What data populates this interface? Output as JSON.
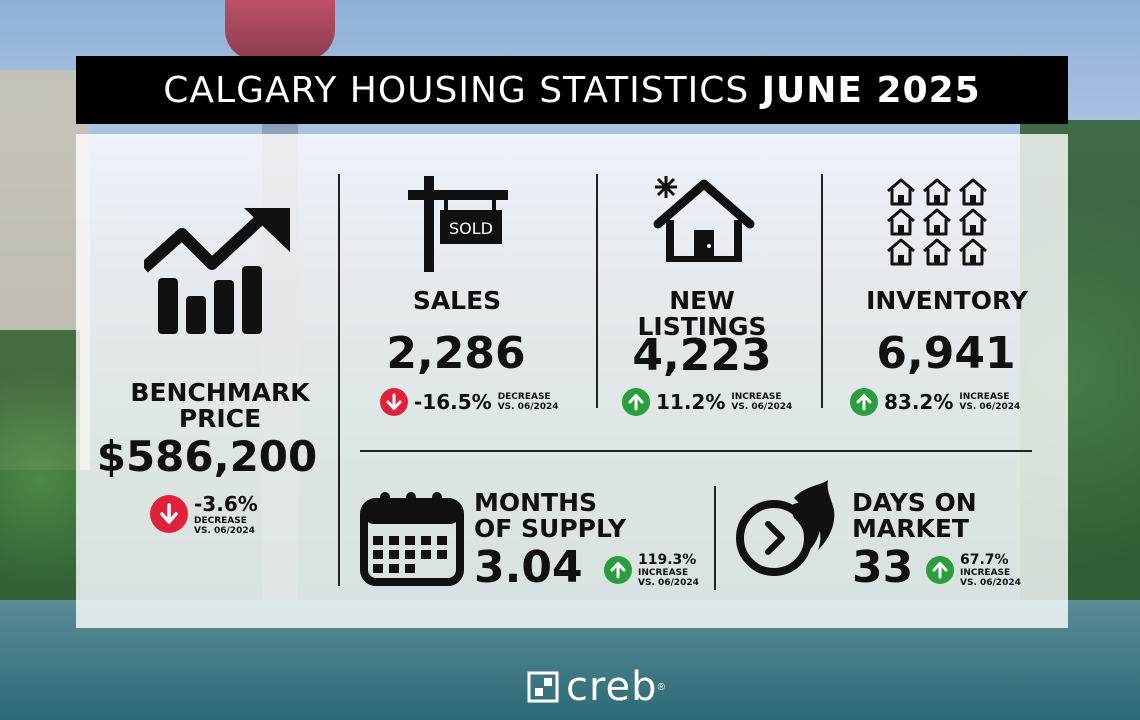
{
  "title": {
    "prefix": "CALGARY HOUSING STATISTICS",
    "period": "JUNE 2025"
  },
  "benchmark": {
    "label_line1": "BENCHMARK",
    "label_line2": "PRICE",
    "value": "$586,200",
    "change": "-3.6%",
    "note1": "DECREASE",
    "note2": "VS. 06/2024",
    "direction": "down",
    "icon": "trending-up-chart-icon"
  },
  "sales": {
    "label": "SALES",
    "value": "2,286",
    "change": "-16.5%",
    "note1": "DECREASE",
    "note2": "VS. 06/2024",
    "direction": "down",
    "sign_text": "SOLD",
    "icon": "sold-sign-icon"
  },
  "new_listings": {
    "label_line1": "NEW",
    "label_line2": "LISTINGS",
    "value": "4,223",
    "change": "11.2%",
    "note1": "INCREASE",
    "note2": "VS. 06/2024",
    "direction": "up",
    "icon": "new-house-icon"
  },
  "inventory": {
    "label": "INVENTORY",
    "value": "6,941",
    "change": "83.2%",
    "note1": "INCREASE",
    "note2": "VS. 06/2024",
    "direction": "up",
    "icon": "houses-grid-icon"
  },
  "months_supply": {
    "label_line1": "MONTHS",
    "label_line2": "OF SUPPLY",
    "value": "3.04",
    "change": "119.3%",
    "note1": "INCREASE",
    "note2": "VS. 06/2024",
    "direction": "up",
    "icon": "calendar-icon"
  },
  "days_on_market": {
    "label_line1": "DAYS ON",
    "label_line2": "MARKET",
    "value": "33",
    "change": "67.7%",
    "note1": "INCREASE",
    "note2": "VS. 06/2024",
    "direction": "up",
    "icon": "fast-clock-icon"
  },
  "logo": {
    "text": "creb",
    "reg": "®"
  },
  "colors": {
    "up": "#2a9d3d",
    "down": "#e0213c",
    "title_bg": "#000000"
  }
}
